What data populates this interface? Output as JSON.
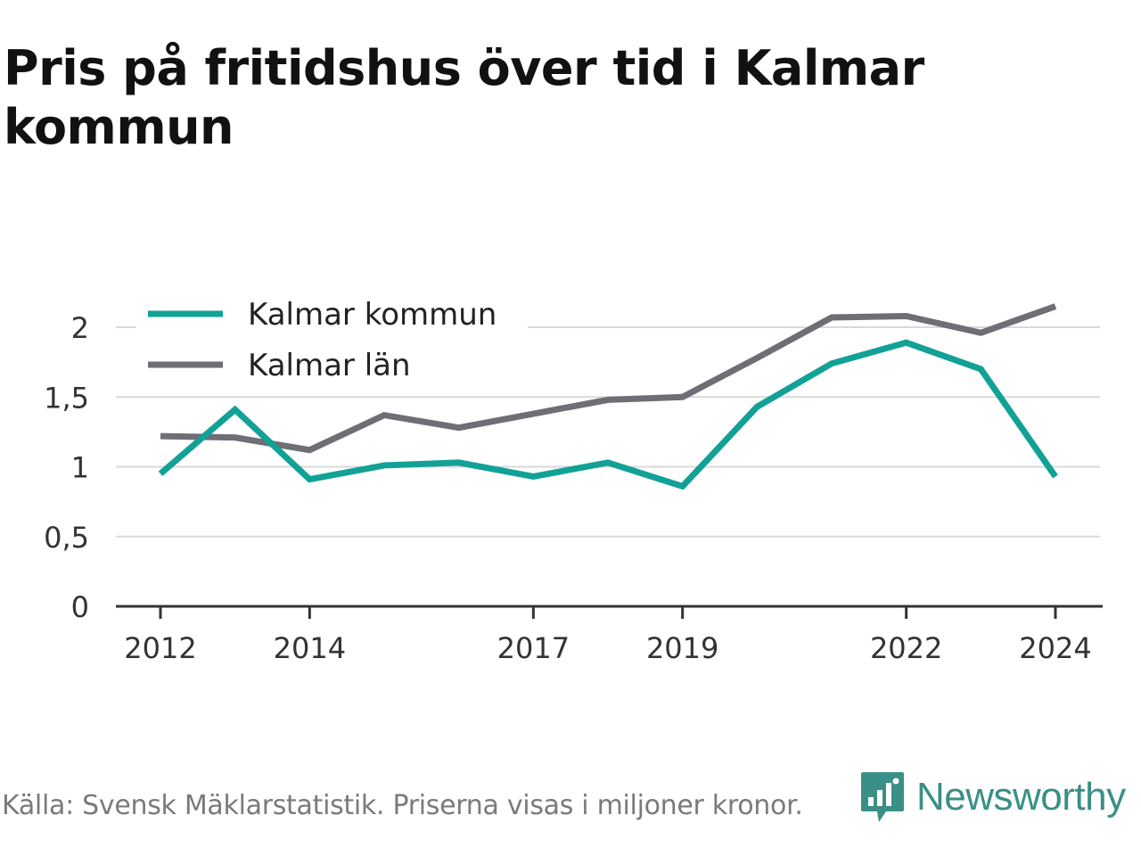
{
  "title": "Pris på fritidshus över tid i Kalmar kommun",
  "footer": {
    "source": "Källa: Svensk Mäklarstatistik. Priserna visas i miljoner kronor.",
    "brand": "Newsworthy"
  },
  "colors": {
    "kommun": "#12a196",
    "lan": "#6f6e75",
    "grid": "#d9d9d9",
    "axis": "#333333",
    "brand": "#3a8f86"
  },
  "chart_data": {
    "type": "line",
    "x": [
      2012,
      2013,
      2014,
      2015,
      2016,
      2017,
      2018,
      2019,
      2020,
      2021,
      2022,
      2023,
      2024
    ],
    "x_tick_labels": [
      "2012",
      "2014",
      "2017",
      "2019",
      "2022",
      "2024"
    ],
    "x_tick_values": [
      2012,
      2014,
      2017,
      2019,
      2022,
      2024
    ],
    "y_tick_labels": [
      "0",
      "0,5",
      "1",
      "1,5",
      "2"
    ],
    "y_tick_values": [
      0,
      0.5,
      1,
      1.5,
      2
    ],
    "ylim": [
      0,
      2.2
    ],
    "grid": true,
    "legend_position": "top-left",
    "series": [
      {
        "name": "Kalmar kommun",
        "color": "#12a196",
        "values": [
          0.95,
          1.41,
          0.91,
          1.01,
          1.03,
          0.93,
          1.03,
          0.86,
          1.43,
          1.74,
          1.89,
          1.7,
          0.93
        ]
      },
      {
        "name": "Kalmar län",
        "color": "#6f6e75",
        "values": [
          1.22,
          1.21,
          1.12,
          1.37,
          1.28,
          1.38,
          1.48,
          1.5,
          1.78,
          2.07,
          2.08,
          1.96,
          2.15
        ]
      }
    ]
  }
}
